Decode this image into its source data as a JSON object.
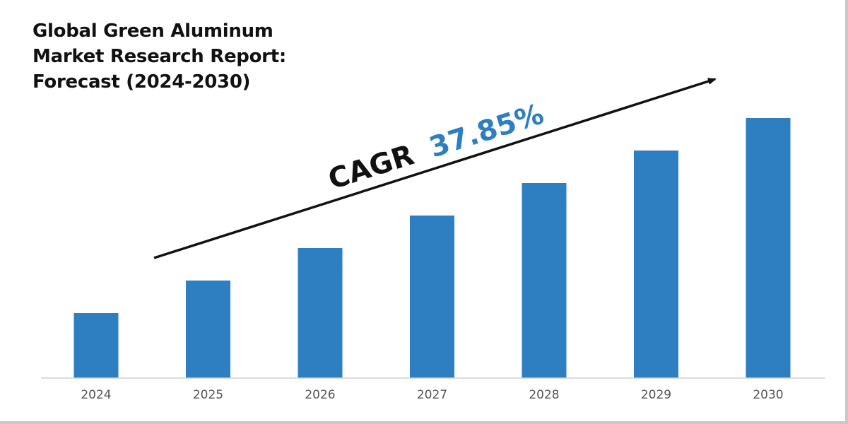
{
  "title_lines": [
    "Global Green Aluminum",
    "Market Research Report:",
    "Forecast (2024-2030)"
  ],
  "annotation": {
    "label": "CAGR",
    "value": "37.85%",
    "label_color": "#111111",
    "value_color": "#2E7FC1"
  },
  "colors": {
    "bar": "#2E7FC1",
    "axis": "#d0d0d0",
    "arrow": "#111111"
  },
  "chart_data": {
    "type": "bar",
    "title": "Global Green Aluminum Market Research Report: Forecast (2024-2030)",
    "categories": [
      "2024",
      "2025",
      "2026",
      "2027",
      "2028",
      "2029",
      "2030"
    ],
    "values": [
      1.0,
      1.5,
      2.0,
      2.5,
      3.0,
      3.5,
      4.0
    ],
    "ylim": [
      0,
      4.0
    ],
    "xlabel": "",
    "ylabel": "",
    "grid": false,
    "legend": "none",
    "annotation": "CAGR 37.85%"
  }
}
